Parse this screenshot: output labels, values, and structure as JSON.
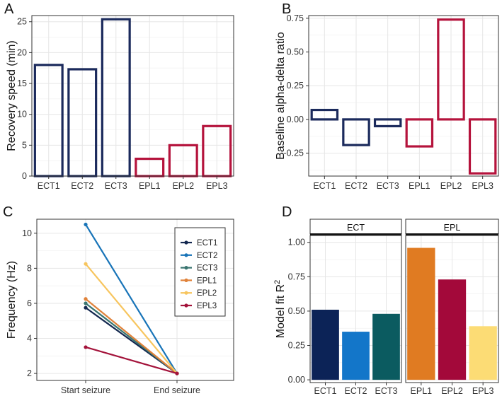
{
  "panels": [
    "A",
    "B",
    "C",
    "D"
  ],
  "chart_data": [
    {
      "id": "A",
      "type": "bar",
      "categories": [
        "ECT1",
        "ECT2",
        "ECT3",
        "EPL1",
        "EPL2",
        "EPL3"
      ],
      "values": [
        18,
        17.3,
        25.4,
        2.8,
        5,
        8.1
      ],
      "colors": [
        "#1b2a5c",
        "#1b2a5c",
        "#1b2a5c",
        "#b5133c",
        "#b5133c",
        "#b5133c"
      ],
      "ylabel": "Recovery speed (min)",
      "ylim": [
        0,
        26
      ],
      "yticks": [
        "0",
        "5",
        "10",
        "15",
        "20",
        "25"
      ],
      "fill": "none",
      "grid": true
    },
    {
      "id": "B",
      "type": "bar",
      "categories": [
        "ECT1",
        "ECT2",
        "ECT3",
        "EPL1",
        "EPL2",
        "EPL3"
      ],
      "values": [
        0.07,
        -0.19,
        -0.05,
        -0.2,
        0.74,
        -0.4
      ],
      "colors": [
        "#1b2a5c",
        "#1b2a5c",
        "#1b2a5c",
        "#b5133c",
        "#b5133c",
        "#b5133c"
      ],
      "ylabel": "Baseline alpha-delta ratio",
      "ylim": [
        -0.42,
        0.77
      ],
      "yticks": [
        "-0.25",
        "0.00",
        "0.25",
        "0.50",
        "0.75"
      ],
      "fill": "none",
      "grid": true
    },
    {
      "id": "C",
      "type": "line",
      "x": [
        "Start seizure",
        "End seizure"
      ],
      "ylabel": "Frequency (Hz)",
      "ylim": [
        1.6,
        10.8
      ],
      "yticks": [
        "2",
        "4",
        "6",
        "8",
        "10"
      ],
      "legend_position": "top-right",
      "series": [
        {
          "name": "ECT1",
          "values": [
            5.75,
            2.0
          ],
          "color": "#142850"
        },
        {
          "name": "ECT2",
          "values": [
            10.5,
            2.0
          ],
          "color": "#1874b8"
        },
        {
          "name": "ECT3",
          "values": [
            6.0,
            2.0
          ],
          "color": "#3a7570"
        },
        {
          "name": "EPL1",
          "values": [
            6.25,
            2.0
          ],
          "color": "#e0823a"
        },
        {
          "name": "EPL2",
          "values": [
            8.25,
            2.0
          ],
          "color": "#f7c55e"
        },
        {
          "name": "EPL3",
          "values": [
            3.5,
            2.0
          ],
          "color": "#a3123a"
        }
      ],
      "grid": true
    },
    {
      "id": "D",
      "type": "bar",
      "facets": [
        {
          "label": "ECT",
          "categories": [
            "ECT1",
            "ECT2",
            "ECT3"
          ],
          "values": [
            0.51,
            0.35,
            0.48
          ],
          "colors": [
            "#0c2357",
            "#1376c9",
            "#0b5b60"
          ]
        },
        {
          "label": "EPL",
          "categories": [
            "EPL1",
            "EPL2",
            "EPL3"
          ],
          "values": [
            0.96,
            0.73,
            0.39
          ],
          "colors": [
            "#e07b22",
            "#a3093a",
            "#fcdc75"
          ]
        }
      ],
      "ylabel_main": "Model fit R",
      "ylabel_sup": "2",
      "ylim": [
        -0.02,
        1.05
      ],
      "yticks": [
        "0.00",
        "0.25",
        "0.50",
        "0.75",
        "1.00"
      ],
      "grid": true
    }
  ]
}
